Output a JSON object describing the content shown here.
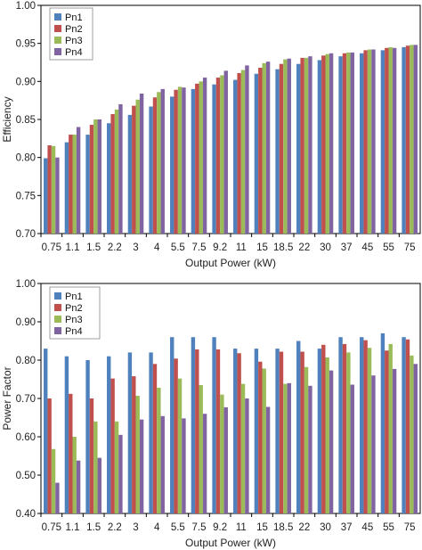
{
  "chart_data": [
    {
      "type": "bar",
      "categories": [
        "0.75",
        "1.1",
        "1.5",
        "2.2",
        "3",
        "4",
        "5.5",
        "7.5",
        "9.2",
        "11",
        "15",
        "18.5",
        "22",
        "30",
        "37",
        "45",
        "55",
        "75"
      ],
      "xlabel": "Output Power (kW)",
      "ylabel": "Efficiency",
      "ylim": [
        0.7,
        1.0
      ],
      "yticks": [
        "0.70",
        "0.75",
        "0.80",
        "0.85",
        "0.90",
        "0.95",
        "1.00"
      ],
      "grid": false,
      "legend_position": "top-left",
      "series": [
        {
          "name": "Pn1",
          "color": "#4f81bd",
          "values": [
            0.799,
            0.82,
            0.83,
            0.845,
            0.856,
            0.867,
            0.88,
            0.89,
            0.896,
            0.902,
            0.91,
            0.916,
            0.923,
            0.928,
            0.933,
            0.937,
            0.941,
            0.945
          ]
        },
        {
          "name": "Pn2",
          "color": "#c0504d",
          "values": [
            0.816,
            0.83,
            0.843,
            0.857,
            0.868,
            0.879,
            0.889,
            0.897,
            0.905,
            0.911,
            0.918,
            0.923,
            0.931,
            0.934,
            0.937,
            0.941,
            0.944,
            0.947
          ]
        },
        {
          "name": "Pn3",
          "color": "#9bbb59",
          "values": [
            0.815,
            0.83,
            0.85,
            0.863,
            0.876,
            0.886,
            0.893,
            0.9,
            0.908,
            0.915,
            0.924,
            0.929,
            0.931,
            0.936,
            0.938,
            0.942,
            0.945,
            0.948
          ]
        },
        {
          "name": "Pn4",
          "color": "#8064a2",
          "values": [
            0.8,
            0.84,
            0.85,
            0.87,
            0.884,
            0.89,
            0.892,
            0.905,
            0.914,
            0.921,
            0.926,
            0.93,
            0.933,
            0.937,
            0.938,
            0.942,
            0.944,
            0.948
          ]
        }
      ]
    },
    {
      "type": "bar",
      "categories": [
        "0.75",
        "1.1",
        "1.5",
        "2.2",
        "3",
        "4",
        "5.5",
        "7.5",
        "9.2",
        "11",
        "15",
        "18.5",
        "22",
        "30",
        "37",
        "45",
        "55",
        "75"
      ],
      "xlabel": "Output Power (kW)",
      "ylabel": "Power Factor",
      "ylim": [
        0.4,
        1.0
      ],
      "yticks": [
        "0.40",
        "0.50",
        "0.60",
        "0.70",
        "0.80",
        "0.90",
        "1.00"
      ],
      "grid": false,
      "legend_position": "top-left",
      "series": [
        {
          "name": "Pn1",
          "color": "#4f81bd",
          "values": [
            0.83,
            0.81,
            0.8,
            0.81,
            0.82,
            0.82,
            0.86,
            0.86,
            0.86,
            0.83,
            0.83,
            0.83,
            0.85,
            0.83,
            0.86,
            0.86,
            0.87,
            0.86
          ]
        },
        {
          "name": "Pn2",
          "color": "#c0504d",
          "values": [
            0.7,
            0.712,
            0.7,
            0.752,
            0.758,
            0.79,
            0.804,
            0.828,
            0.828,
            0.818,
            0.796,
            0.822,
            0.822,
            0.84,
            0.842,
            0.852,
            0.825,
            0.854
          ]
        },
        {
          "name": "Pn3",
          "color": "#9bbb59",
          "values": [
            0.568,
            0.6,
            0.64,
            0.64,
            0.707,
            0.728,
            0.752,
            0.735,
            0.71,
            0.738,
            0.778,
            0.738,
            0.782,
            0.807,
            0.82,
            0.832,
            0.842,
            0.812
          ]
        },
        {
          "name": "Pn4",
          "color": "#8064a2",
          "values": [
            0.48,
            0.538,
            0.545,
            0.605,
            0.645,
            0.654,
            0.648,
            0.66,
            0.677,
            0.7,
            0.678,
            0.74,
            0.733,
            0.773,
            0.736,
            0.76,
            0.777,
            0.79
          ]
        }
      ]
    }
  ]
}
